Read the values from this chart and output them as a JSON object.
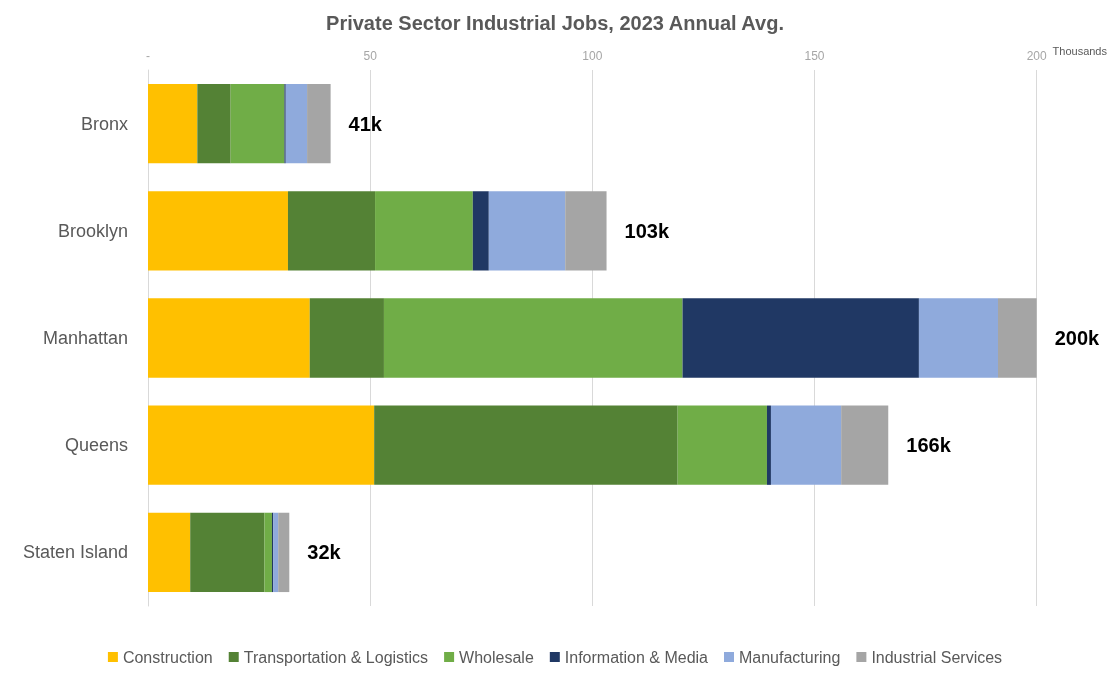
{
  "chart_data": {
    "type": "bar",
    "orientation": "horizontal",
    "stacked": true,
    "title": "Private Sector Industrial Jobs, 2023 Annual Avg.",
    "xlabel": "Thousands",
    "categories": [
      "Bronx",
      "Brooklyn",
      "Manhattan",
      "Queens",
      "Staten Island"
    ],
    "series": [
      {
        "name": "Construction",
        "color": "#ffc000",
        "values": [
          11.1,
          31.5,
          36.4,
          50.9,
          9.5
        ]
      },
      {
        "name": "Transportation & Logistics",
        "color": "#548235",
        "values": [
          7.5,
          19.6,
          16.7,
          68.3,
          16.7
        ]
      },
      {
        "name": "Wholesale",
        "color": "#70ad47",
        "values": [
          12.1,
          22.0,
          67.2,
          20.1,
          1.7
        ]
      },
      {
        "name": "Information & Media",
        "color": "#203864",
        "values": [
          0.3,
          3.6,
          53.2,
          0.9,
          0.3
        ]
      },
      {
        "name": "Manufacturing",
        "color": "#8faadc",
        "values": [
          4.8,
          17.2,
          17.8,
          15.8,
          1.1
        ]
      },
      {
        "name": "Industrial Services",
        "color": "#a5a5a5",
        "values": [
          5.3,
          9.3,
          8.7,
          10.6,
          2.5
        ]
      }
    ],
    "totals": [
      "41k",
      "103k",
      "200k",
      "166k",
      "32k"
    ],
    "xlim": [
      0,
      200
    ],
    "xticks": [
      {
        "value": 0,
        "label": "-"
      },
      50,
      100,
      150,
      200
    ],
    "grid": "x",
    "legend": "bottom"
  }
}
